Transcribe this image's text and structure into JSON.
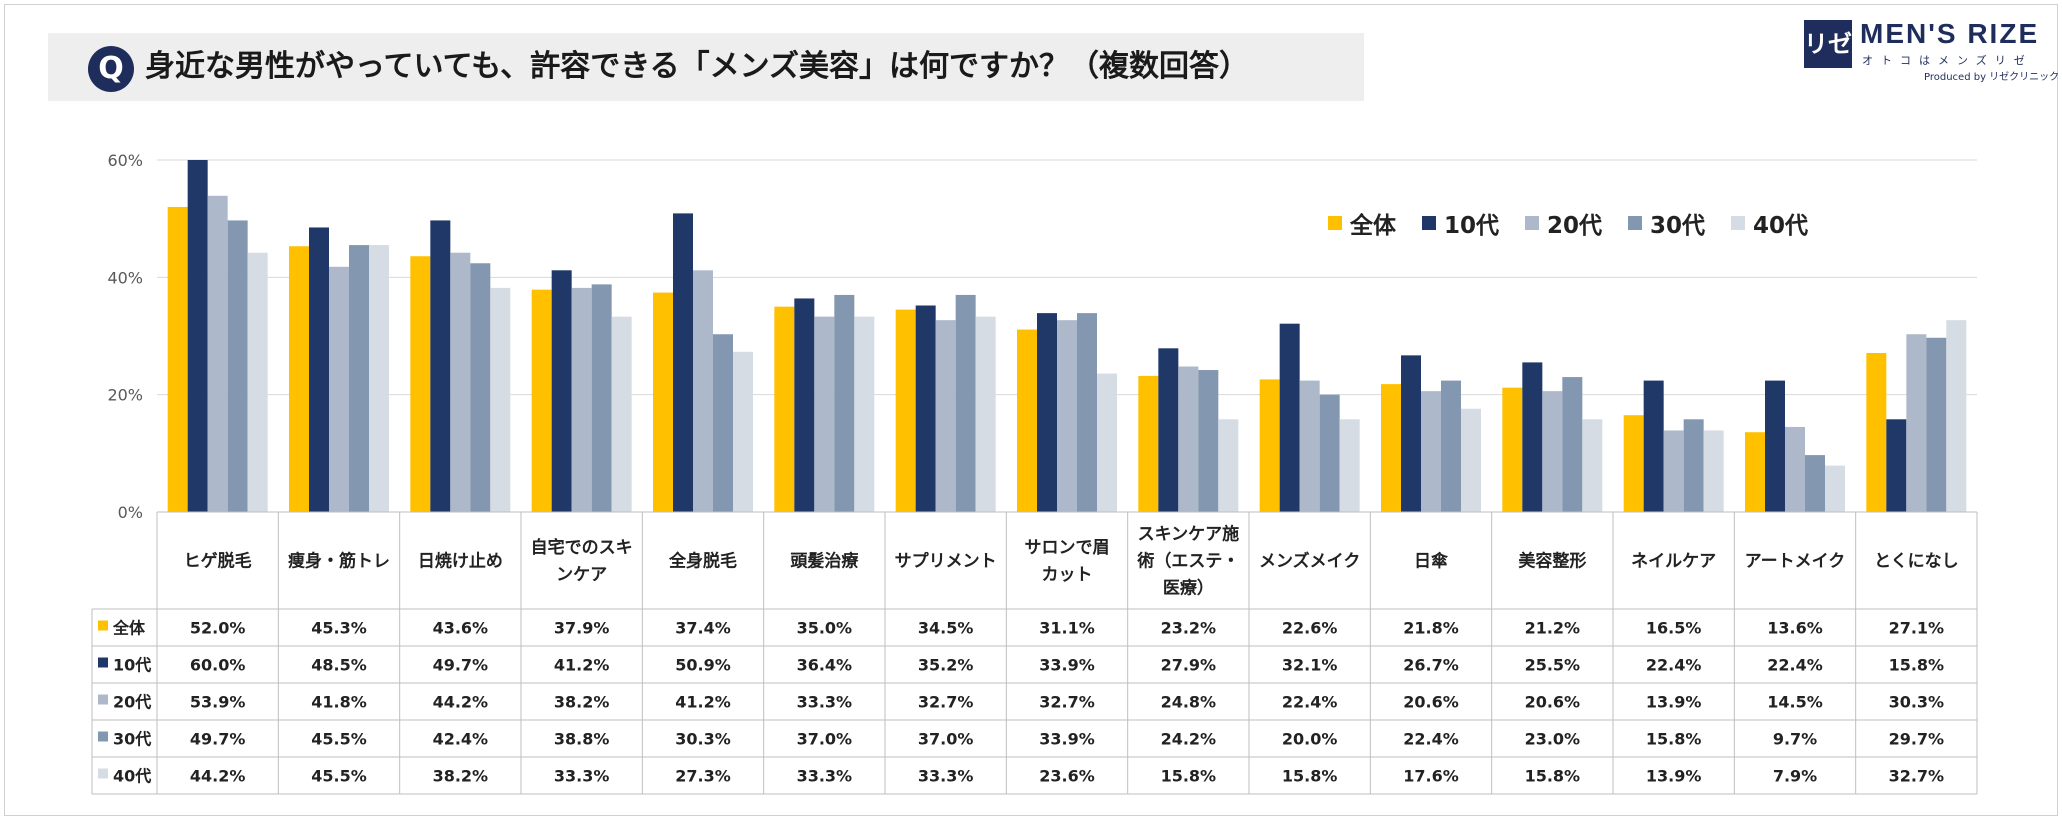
{
  "title": {
    "q_badge": "Q",
    "text": "身近な男性がやっていても、許容できる「メンズ美容」は何ですか？（複数回答）"
  },
  "logo": {
    "mark": "リゼ",
    "name": "MEN'S RIZE",
    "sub": "オトコはメンズリゼ",
    "produced_by": "Produced by リゼクリニック"
  },
  "colors": {
    "全体": "#ffc000",
    "10代": "#1f3868",
    "20代": "#adb9ca",
    "30代": "#8497b0",
    "40代": "#d6dce4"
  },
  "chart_data": {
    "type": "bar",
    "ylim": [
      0,
      60
    ],
    "yticks": [
      "0%",
      "20%",
      "40%",
      "60%"
    ],
    "ytick_values": [
      0,
      20,
      40,
      60
    ],
    "grid": true,
    "legend_position": "top-right",
    "categories": [
      "ヒゲ脱毛",
      "痩身・筋トレ",
      "日焼け止め",
      "自宅でのスキンケア",
      "全身脱毛",
      "頭髪治療",
      "サプリメント",
      "サロンで眉カット",
      "スキンケア施術（エステ・医療）",
      "メンズメイク",
      "日傘",
      "美容整形",
      "ネイルケア",
      "アートメイク",
      "とくになし"
    ],
    "category_lines": [
      [
        "ヒゲ脱毛"
      ],
      [
        "痩身・筋トレ"
      ],
      [
        "日焼け止め"
      ],
      [
        "自宅でのスキ",
        "ンケア"
      ],
      [
        "全身脱毛"
      ],
      [
        "頭髪治療"
      ],
      [
        "サプリメント"
      ],
      [
        "サロンで眉",
        "カット"
      ],
      [
        "スキンケア施",
        "術（エステ・",
        "医療）"
      ],
      [
        "メンズメイク"
      ],
      [
        "日傘"
      ],
      [
        "美容整形"
      ],
      [
        "ネイルケア"
      ],
      [
        "アートメイク"
      ],
      [
        "とくになし"
      ]
    ],
    "series": [
      {
        "name": "全体",
        "values": [
          52.0,
          45.3,
          43.6,
          37.9,
          37.4,
          35.0,
          34.5,
          31.1,
          23.2,
          22.6,
          21.8,
          21.2,
          16.5,
          13.6,
          27.1
        ],
        "labels": [
          "52.0%",
          "45.3%",
          "43.6%",
          "37.9%",
          "37.4%",
          "35.0%",
          "34.5%",
          "31.1%",
          "23.2%",
          "22.6%",
          "21.8%",
          "21.2%",
          "16.5%",
          "13.6%",
          "27.1%"
        ]
      },
      {
        "name": "10代",
        "values": [
          60.0,
          48.5,
          49.7,
          41.2,
          50.9,
          36.4,
          35.2,
          33.9,
          27.9,
          32.1,
          26.7,
          25.5,
          22.4,
          22.4,
          15.8
        ],
        "labels": [
          "60.0%",
          "48.5%",
          "49.7%",
          "41.2%",
          "50.9%",
          "36.4%",
          "35.2%",
          "33.9%",
          "27.9%",
          "32.1%",
          "26.7%",
          "25.5%",
          "22.4%",
          "22.4%",
          "15.8%"
        ]
      },
      {
        "name": "20代",
        "values": [
          53.9,
          41.8,
          44.2,
          38.2,
          41.2,
          33.3,
          32.7,
          32.7,
          24.8,
          22.4,
          20.6,
          20.6,
          13.9,
          14.5,
          30.3
        ],
        "labels": [
          "53.9%",
          "41.8%",
          "44.2%",
          "38.2%",
          "41.2%",
          "33.3%",
          "32.7%",
          "32.7%",
          "24.8%",
          "22.4%",
          "20.6%",
          "20.6%",
          "13.9%",
          "14.5%",
          "30.3%"
        ]
      },
      {
        "name": "30代",
        "values": [
          49.7,
          45.5,
          42.4,
          38.8,
          30.3,
          37.0,
          37.0,
          33.9,
          24.2,
          20.0,
          22.4,
          23.0,
          15.8,
          9.7,
          29.7
        ],
        "labels": [
          "49.7%",
          "45.5%",
          "42.4%",
          "38.8%",
          "30.3%",
          "37.0%",
          "37.0%",
          "33.9%",
          "24.2%",
          "20.0%",
          "22.4%",
          "23.0%",
          "15.8%",
          "9.7%",
          "29.7%"
        ]
      },
      {
        "name": "40代",
        "values": [
          44.2,
          45.5,
          38.2,
          33.3,
          27.3,
          33.3,
          33.3,
          23.6,
          15.8,
          15.8,
          17.6,
          15.8,
          13.9,
          7.9,
          32.7
        ],
        "labels": [
          "44.2%",
          "45.5%",
          "38.2%",
          "33.3%",
          "27.3%",
          "33.3%",
          "33.3%",
          "23.6%",
          "15.8%",
          "15.8%",
          "17.6%",
          "15.8%",
          "13.9%",
          "7.9%",
          "32.7%"
        ]
      }
    ]
  }
}
